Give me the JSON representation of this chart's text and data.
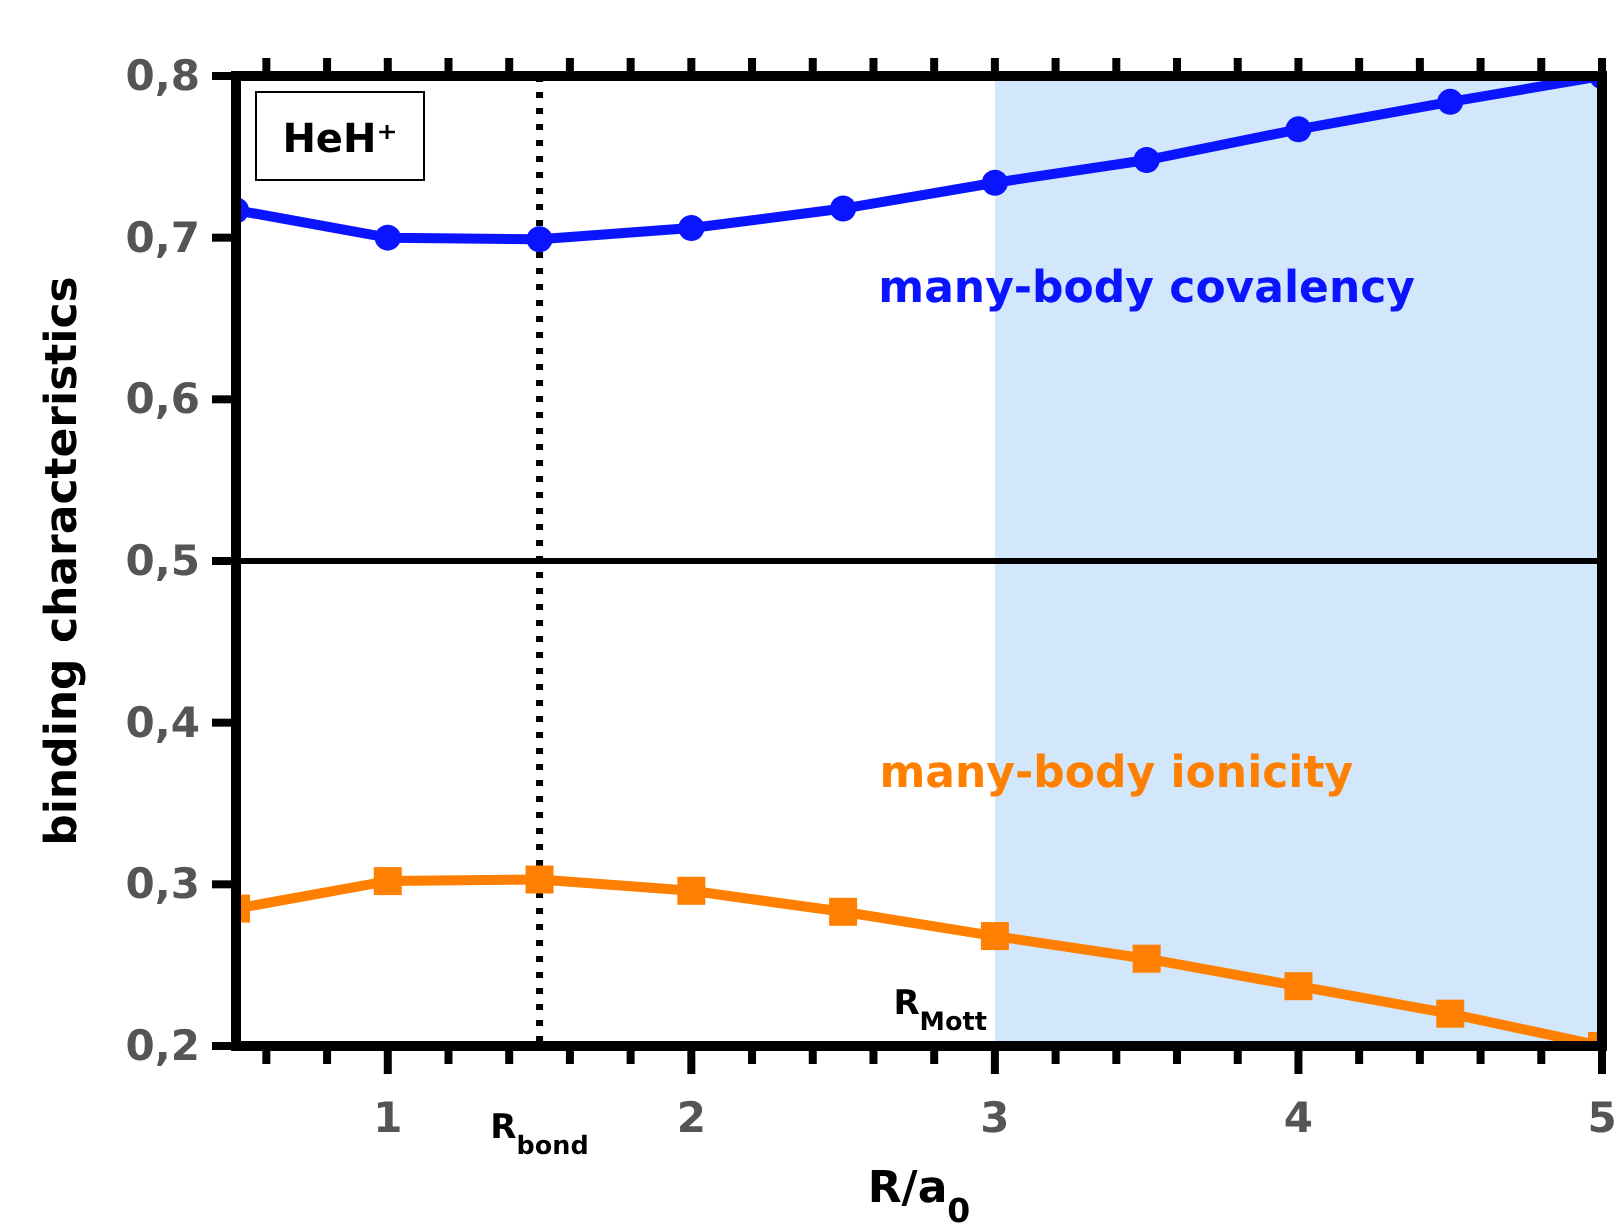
{
  "chart_data": {
    "type": "line",
    "xlabel": "R/a$_{0}$",
    "ylabel": "binding characteristics",
    "x": [
      0.5,
      1,
      1.5,
      2,
      2.5,
      3,
      3.5,
      4,
      4.5,
      5
    ],
    "series": [
      {
        "name": "many-body covalency",
        "color": "#0a14ff",
        "marker": "circle",
        "values": [
          0.717,
          0.7,
          0.699,
          0.706,
          0.718,
          0.734,
          0.748,
          0.767,
          0.784,
          0.8
        ]
      },
      {
        "name": "many-body ionicity",
        "color": "#ff8000",
        "marker": "square",
        "values": [
          0.285,
          0.302,
          0.303,
          0.296,
          0.283,
          0.268,
          0.254,
          0.237,
          0.22,
          0.2
        ]
      }
    ],
    "xlim": [
      0.5,
      5
    ],
    "xticks": [
      {
        "value": 0.6,
        "label": null
      },
      {
        "value": 0.8,
        "label": null
      },
      1,
      {
        "value": 1.2,
        "label": null
      },
      {
        "value": 1.4,
        "label": null
      },
      {
        "value": 1.6,
        "label": null
      },
      {
        "value": 1.8,
        "label": null
      },
      2,
      {
        "value": 2.2,
        "label": null
      },
      {
        "value": 2.4,
        "label": null
      },
      {
        "value": 2.6,
        "label": null
      },
      {
        "value": 2.8,
        "label": null
      },
      3,
      {
        "value": 3.2,
        "label": null
      },
      {
        "value": 3.4,
        "label": null
      },
      {
        "value": 3.6,
        "label": null
      },
      {
        "value": 3.8,
        "label": null
      },
      4,
      {
        "value": 4.2,
        "label": null
      },
      {
        "value": 4.4,
        "label": null
      },
      {
        "value": 4.6,
        "label": null
      },
      {
        "value": 4.8,
        "label": null
      },
      5
    ],
    "ylim": [
      0.2,
      0.8
    ],
    "yticks": [
      {
        "value": 0.2,
        "label": "0,2"
      },
      {
        "value": 0.3,
        "label": "0,3"
      },
      {
        "value": 0.4,
        "label": "0,4"
      },
      {
        "value": 0.5,
        "label": "0,5"
      },
      {
        "value": 0.6,
        "label": "0,6"
      },
      {
        "value": 0.7,
        "label": "0,7"
      },
      {
        "value": 0.8,
        "label": "0,8"
      }
    ],
    "ref_lines": [
      {
        "axis": "y",
        "value": 0.5,
        "color": "#000000",
        "line_style": "solid"
      },
      {
        "axis": "x",
        "value": 1.5,
        "label": "R$_{bond}$",
        "color": "#000000",
        "line_style": "dotted"
      }
    ],
    "bands": [
      {
        "axis": "x",
        "from": 3,
        "to": 5,
        "label": "R$_{Mott}$",
        "color": "#d2e6fc"
      }
    ],
    "annotations": [
      "HeH⁺"
    ],
    "grid": false
  }
}
